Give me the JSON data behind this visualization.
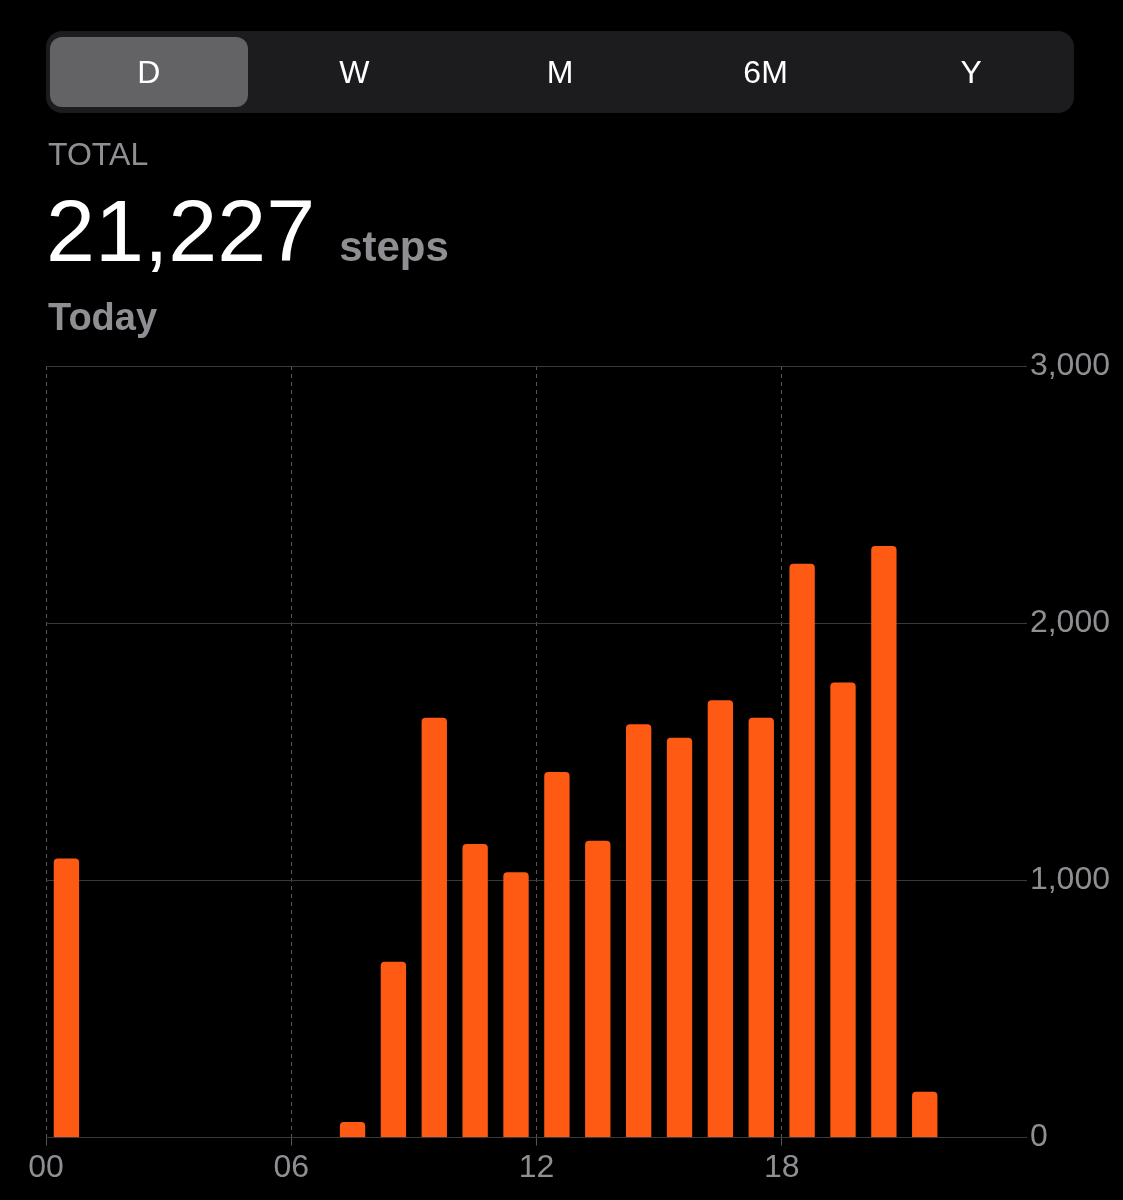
{
  "chart_data": {
    "type": "bar",
    "title": "21,227 steps",
    "subtitle": "TOTAL",
    "annotations": [
      "D",
      "W",
      "M",
      "6M",
      "Y",
      "Today"
    ],
    "x": [
      0.5,
      1.5,
      2.5,
      3.5,
      4.5,
      5.5,
      6.5,
      7.5,
      8.5,
      9.5,
      10.5,
      11.5,
      12.5,
      13.5,
      14.5,
      15.5,
      16.5,
      17.5,
      18.5,
      19.5,
      20.5,
      21.5
    ],
    "values": [
      1085,
      null,
      null,
      null,
      null,
      null,
      null,
      61,
      684,
      1632,
      1142,
      1032,
      1421,
      1154,
      1607,
      1555,
      1700,
      1632,
      2231,
      1769,
      2300,
      178
    ],
    "color": "#ff5a14",
    "xlim": [
      0,
      24
    ],
    "xticks": [
      {
        "value": 0,
        "label": "00"
      },
      {
        "value": 6,
        "label": "06"
      },
      {
        "value": 12,
        "label": "12"
      },
      {
        "value": 18,
        "label": "18"
      }
    ],
    "ylim": [
      0,
      3000
    ],
    "yticks": [
      {
        "value": 0,
        "label": "0"
      },
      {
        "value": 1000,
        "label": "1,000"
      },
      {
        "value": 2000,
        "label": "2,000"
      },
      {
        "value": 3000,
        "label": "3,000"
      }
    ],
    "grid": true
  }
}
